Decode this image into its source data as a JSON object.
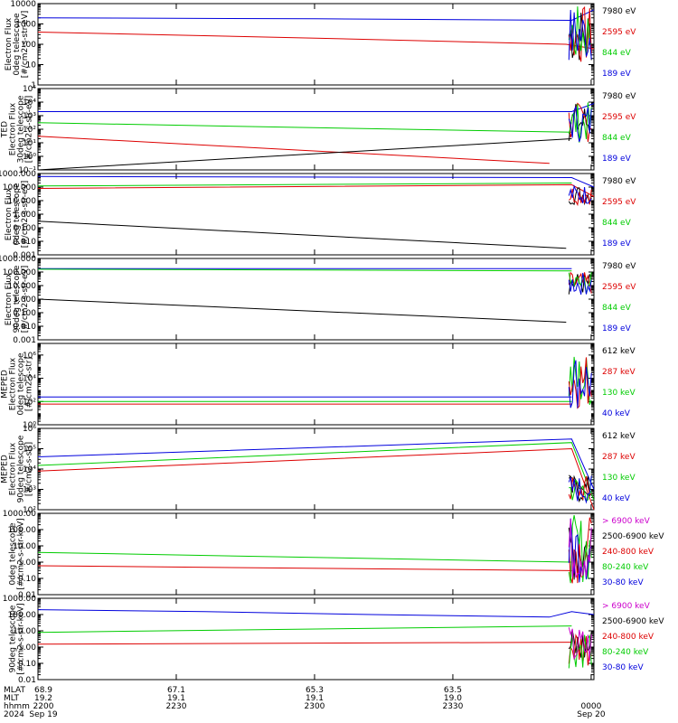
{
  "chart_data": [
    {
      "type": "line",
      "ylabel": [
        "Electron Flux",
        "0deg telescope",
        "[#/cm2-s-str-eV]"
      ],
      "yscale": "log",
      "ylim": [
        1,
        10000
      ],
      "yticks": [
        {
          "v": 1,
          "t": "1"
        },
        {
          "v": 10,
          "t": "10"
        },
        {
          "v": 100,
          "t": "100"
        },
        {
          "v": 1000,
          "t": "1000"
        },
        {
          "v": 10000,
          "t": "10000"
        }
      ],
      "legend": [
        {
          "text": "7980 eV",
          "color": "#000000"
        },
        {
          "text": "2595 eV",
          "color": "#dd0000"
        },
        {
          "text": "844 eV",
          "color": "#00cc00"
        },
        {
          "text": "189 eV",
          "color": "#0000dd"
        }
      ],
      "series": [
        {
          "color": "#0000dd",
          "points": [
            [
              0,
              2000
            ],
            [
              0.5,
              1800
            ],
            [
              0.96,
              1500
            ],
            [
              1.0,
              5000
            ]
          ]
        },
        {
          "color": "#dd0000",
          "points": [
            [
              0,
              400
            ],
            [
              0.5,
              200
            ],
            [
              0.95,
              100
            ],
            [
              1.0,
              60
            ]
          ]
        }
      ],
      "spikes": {
        "x0": 0.955,
        "x1": 1.0,
        "colors": [
          "#000000",
          "#dd0000",
          "#00cc00",
          "#0000dd"
        ],
        "ymin": 10,
        "ymax": 8000
      }
    },
    {
      "type": "line",
      "ylabel": [
        "TED",
        "Electron Flux",
        "30deg telescope",
        "[#/cm2-s-str-eV]"
      ],
      "yscale": "log",
      "ylim": [
        0.1,
        100000
      ],
      "yticks": [
        {
          "v": 0.1,
          "t": "10⁻¹"
        },
        {
          "v": 1,
          "t": "10⁰"
        },
        {
          "v": 10,
          "t": "10¹"
        },
        {
          "v": 100,
          "t": "10²"
        },
        {
          "v": 1000,
          "t": "10³"
        },
        {
          "v": 10000,
          "t": "10⁴"
        },
        {
          "v": 100000,
          "t": "10⁵"
        }
      ],
      "legend": [
        {
          "text": "7980 eV",
          "color": "#000000"
        },
        {
          "text": "2595 eV",
          "color": "#dd0000"
        },
        {
          "text": "844 eV",
          "color": "#00cc00"
        },
        {
          "text": "189 eV",
          "color": "#0000dd"
        }
      ],
      "series": [
        {
          "color": "#0000dd",
          "points": [
            [
              0,
              2000
            ],
            [
              0.96,
              2000
            ],
            [
              1.0,
              8000
            ]
          ]
        },
        {
          "color": "#00cc00",
          "points": [
            [
              0,
              300
            ],
            [
              0.96,
              60
            ]
          ]
        },
        {
          "color": "#dd0000",
          "points": [
            [
              0,
              30
            ],
            [
              0.92,
              0.3
            ]
          ]
        },
        {
          "color": "#000000",
          "points": [
            [
              0,
              0.1
            ],
            [
              0.96,
              20
            ]
          ]
        }
      ],
      "spikes": {
        "x0": 0.955,
        "x1": 1.0,
        "colors": [
          "#000000",
          "#dd0000",
          "#00cc00",
          "#0000dd"
        ],
        "ymin": 10,
        "ymax": 10000
      }
    },
    {
      "type": "line",
      "ylabel": [
        "Electron Flux",
        "0deg telescope",
        "[#/cm2-s-str-eV]"
      ],
      "yscale": "log",
      "ylim": [
        0.001,
        1000
      ],
      "yticks": [
        {
          "v": 0.001,
          "t": "0.001"
        },
        {
          "v": 0.01,
          "t": "0.010"
        },
        {
          "v": 0.1,
          "t": "0.100"
        },
        {
          "v": 1,
          "t": "1.000"
        },
        {
          "v": 10,
          "t": "10.000"
        },
        {
          "v": 100,
          "t": "100.000"
        },
        {
          "v": 1000,
          "t": "1000.000"
        }
      ],
      "legend": [
        {
          "text": "7980 eV",
          "color": "#000000"
        },
        {
          "text": "2595 eV",
          "color": "#dd0000"
        },
        {
          "text": "844 eV",
          "color": "#00cc00"
        },
        {
          "text": "189 eV",
          "color": "#0000dd"
        }
      ],
      "series": [
        {
          "color": "#0000dd",
          "points": [
            [
              0,
              600
            ],
            [
              0.96,
              500
            ],
            [
              1.0,
              100
            ]
          ]
        },
        {
          "color": "#00cc00",
          "points": [
            [
              0,
              120
            ],
            [
              0.96,
              200
            ]
          ]
        },
        {
          "color": "#dd0000",
          "points": [
            [
              0,
              80
            ],
            [
              0.96,
              150
            ],
            [
              1.0,
              20
            ]
          ]
        },
        {
          "color": "#000000",
          "points": [
            [
              0,
              0.3
            ],
            [
              0.95,
              0.003
            ]
          ]
        }
      ],
      "spikes": {
        "x0": 0.955,
        "x1": 1.0,
        "colors": [
          "#000000",
          "#dd0000",
          "#0000dd"
        ],
        "ymin": 5,
        "ymax": 150
      }
    },
    {
      "type": "line",
      "ylabel": [
        "Electron Flux",
        "90deg telescope",
        "[#/cm2-s-str-eV]"
      ],
      "yscale": "log",
      "ylim": [
        0.001,
        1000
      ],
      "yticks": [
        {
          "v": 0.001,
          "t": "0.001"
        },
        {
          "v": 0.01,
          "t": "0.010"
        },
        {
          "v": 0.1,
          "t": "0.100"
        },
        {
          "v": 1,
          "t": "1.000"
        },
        {
          "v": 10,
          "t": "10.000"
        },
        {
          "v": 100,
          "t": "100.000"
        },
        {
          "v": 1000,
          "t": "1000.000"
        }
      ],
      "legend": [
        {
          "text": "7980 eV",
          "color": "#000000"
        },
        {
          "text": "2595 eV",
          "color": "#dd0000"
        },
        {
          "text": "844 eV",
          "color": "#00cc00"
        },
        {
          "text": "189 eV",
          "color": "#0000dd"
        }
      ],
      "series": [
        {
          "color": "#0000dd",
          "points": [
            [
              0,
              180
            ],
            [
              0.96,
              180
            ]
          ]
        },
        {
          "color": "#00cc00",
          "points": [
            [
              0,
              160
            ],
            [
              0.3,
              150
            ],
            [
              0.96,
              120
            ]
          ]
        },
        {
          "color": "#000000",
          "points": [
            [
              0,
              1
            ],
            [
              0.95,
              0.02
            ]
          ]
        }
      ],
      "spikes": {
        "x0": 0.955,
        "x1": 1.0,
        "colors": [
          "#000000",
          "#dd0000",
          "#00cc00",
          "#0000dd"
        ],
        "ymin": 2,
        "ymax": 100
      }
    },
    {
      "type": "line",
      "ylabel": [
        "MEPED",
        "Electron Flux",
        "0deg telescope",
        "[#/cm2-s-str]"
      ],
      "yscale": "log",
      "ylim": [
        1,
        10000000
      ],
      "yticks": [
        {
          "v": 1,
          "t": "10⁰"
        },
        {
          "v": 100,
          "t": "10²"
        },
        {
          "v": 10000,
          "t": "10⁴"
        },
        {
          "v": 1000000,
          "t": "10⁶"
        }
      ],
      "legend": [
        {
          "text": "612 keV",
          "color": "#000000"
        },
        {
          "text": "287 keV",
          "color": "#dd0000"
        },
        {
          "text": "130 keV",
          "color": "#00cc00"
        },
        {
          "text": "40 keV",
          "color": "#0000dd"
        }
      ],
      "series": [
        {
          "color": "#0000dd",
          "points": [
            [
              0,
              250
            ],
            [
              0.96,
              250
            ]
          ]
        },
        {
          "color": "#00cc00",
          "points": [
            [
              0,
              100
            ],
            [
              0.96,
              100
            ]
          ]
        },
        {
          "color": "#dd0000",
          "points": [
            [
              0,
              60
            ],
            [
              0.96,
              60
            ]
          ]
        }
      ],
      "spikes": {
        "x0": 0.955,
        "x1": 1.0,
        "colors": [
          "#00cc00",
          "#dd0000",
          "#0000dd"
        ],
        "ymin": 20,
        "ymax": 2000000
      }
    },
    {
      "type": "line",
      "ylabel": [
        "MEPED",
        "Electron Flux",
        "90deg telescope",
        "[#/cm2-s-str]"
      ],
      "yscale": "log",
      "ylim": [
        100,
        1000000
      ],
      "yticks": [
        {
          "v": 100,
          "t": "10²"
        },
        {
          "v": 1000,
          "t": "10³"
        },
        {
          "v": 10000,
          "t": "10⁴"
        },
        {
          "v": 100000,
          "t": "10⁵"
        },
        {
          "v": 1000000,
          "t": "10⁶"
        }
      ],
      "legend": [
        {
          "text": "612 keV",
          "color": "#000000"
        },
        {
          "text": "287 keV",
          "color": "#dd0000"
        },
        {
          "text": "130 keV",
          "color": "#00cc00"
        },
        {
          "text": "40 keV",
          "color": "#0000dd"
        }
      ],
      "series": [
        {
          "color": "#0000dd",
          "points": [
            [
              0,
              40000
            ],
            [
              0.96,
              300000
            ],
            [
              1.0,
              1000
            ]
          ]
        },
        {
          "color": "#00cc00",
          "points": [
            [
              0,
              15000
            ],
            [
              0.96,
              200000
            ],
            [
              1.0,
              300
            ]
          ]
        },
        {
          "color": "#dd0000",
          "points": [
            [
              0,
              8000
            ],
            [
              0.96,
              100000
            ],
            [
              1.0,
              100
            ]
          ]
        },
        {
          "color": "#000000",
          "points": [
            [
              0.955,
              5000
            ],
            [
              0.97,
              2000
            ],
            [
              0.99,
              500
            ]
          ]
        }
      ],
      "spikes": {
        "x0": 0.955,
        "x1": 1.0,
        "colors": [
          "#000000",
          "#dd0000",
          "#00cc00",
          "#0000dd"
        ],
        "ymin": 200,
        "ymax": 5000
      }
    },
    {
      "type": "line",
      "ylabel": [
        "0deg telescope",
        "[#/cm2-s-str-keV]"
      ],
      "yscale": "log",
      "ylim": [
        0.01,
        1000
      ],
      "yticks": [
        {
          "v": 0.01,
          "t": "0.01"
        },
        {
          "v": 0.1,
          "t": "0.10"
        },
        {
          "v": 1,
          "t": "1.00"
        },
        {
          "v": 10,
          "t": "10.00"
        },
        {
          "v": 100,
          "t": "100.00"
        },
        {
          "v": 1000,
          "t": "1000.00"
        }
      ],
      "legend": [
        {
          "text": "> 6900 keV",
          "color": "#cc00cc"
        },
        {
          "text": "2500-6900 keV",
          "color": "#000000"
        },
        {
          "text": "240-800 keV",
          "color": "#dd0000"
        },
        {
          "text": "80-240 keV",
          "color": "#00cc00"
        },
        {
          "text": "30-80 keV",
          "color": "#0000dd"
        }
      ],
      "series": [
        {
          "color": "#00cc00",
          "points": [
            [
              0,
              4
            ],
            [
              0.96,
              1
            ]
          ]
        },
        {
          "color": "#dd0000",
          "points": [
            [
              0,
              0.6
            ],
            [
              0.96,
              0.3
            ]
          ]
        }
      ],
      "spikes": {
        "x0": 0.955,
        "x1": 1.0,
        "colors": [
          "#000000",
          "#dd0000",
          "#00cc00",
          "#0000dd",
          "#cc00cc"
        ],
        "ymin": 0.05,
        "ymax": 800
      }
    },
    {
      "type": "line",
      "ylabel": [
        "90deg telescope",
        "[#/cm2-s-str-keV]"
      ],
      "yscale": "log",
      "ylim": [
        0.01,
        1000
      ],
      "yticks": [
        {
          "v": 0.01,
          "t": "0.01"
        },
        {
          "v": 0.1,
          "t": "0.10"
        },
        {
          "v": 1,
          "t": "1.00"
        },
        {
          "v": 10,
          "t": "10.00"
        },
        {
          "v": 100,
          "t": "100.00"
        },
        {
          "v": 1000,
          "t": "1000.00"
        }
      ],
      "legend": [
        {
          "text": "> 6900 keV",
          "color": "#cc00cc"
        },
        {
          "text": "2500-6900 keV",
          "color": "#000000"
        },
        {
          "text": "240-800 keV",
          "color": "#dd0000"
        },
        {
          "text": "80-240 keV",
          "color": "#00cc00"
        },
        {
          "text": "30-80 keV",
          "color": "#0000dd"
        }
      ],
      "series": [
        {
          "color": "#0000dd",
          "points": [
            [
              0,
              200
            ],
            [
              0.3,
              150
            ],
            [
              0.6,
              100
            ],
            [
              0.92,
              70
            ],
            [
              0.96,
              150
            ],
            [
              1.0,
              100
            ]
          ]
        },
        {
          "color": "#00cc00",
          "points": [
            [
              0,
              8
            ],
            [
              0.96,
              20
            ]
          ]
        },
        {
          "color": "#dd0000",
          "points": [
            [
              0,
              1.5
            ],
            [
              0.96,
              2
            ]
          ]
        }
      ],
      "spikes": {
        "x0": 0.955,
        "x1": 1.0,
        "colors": [
          "#000000",
          "#dd0000",
          "#00cc00",
          "#cc00cc"
        ],
        "ymin": 0.05,
        "ymax": 20
      }
    }
  ],
  "xaxis": {
    "row_labels": [
      "MLAT",
      "MLT",
      "hhmm",
      "2024"
    ],
    "ticks": [
      {
        "frac": 0.0,
        "lat": "68.9",
        "mlt": "19.2",
        "hhmm": "2200",
        "date": "Sep 19"
      },
      {
        "frac": 0.2,
        "lat": "67.1",
        "mlt": "19.1",
        "hhmm": "2230",
        "date": ""
      },
      {
        "frac": 0.4,
        "lat": "65.3",
        "mlt": "19.1",
        "hhmm": "2300",
        "date": ""
      },
      {
        "frac": 0.6,
        "lat": "63.5",
        "mlt": "19.0",
        "hhmm": "2330",
        "date": ""
      },
      {
        "frac": 0.8,
        "lat": "",
        "mlt": "",
        "hhmm": "0000",
        "date": "Sep 20"
      }
    ]
  }
}
